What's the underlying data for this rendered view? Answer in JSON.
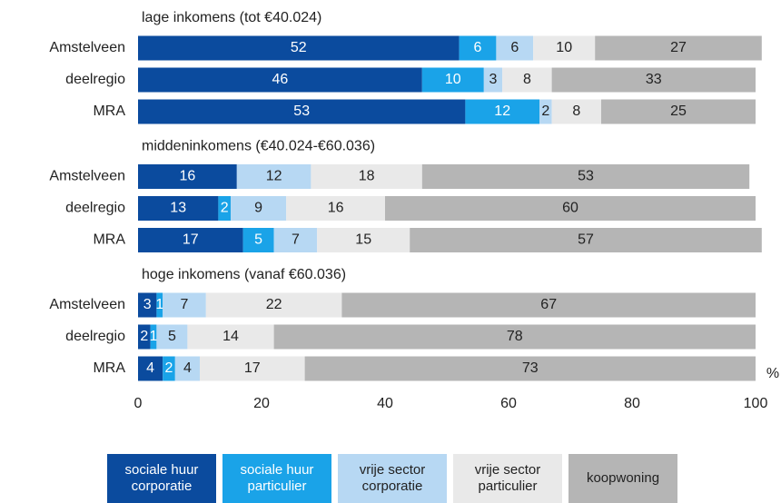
{
  "chart_data": {
    "type": "bar",
    "stacked": true,
    "series": [
      {
        "name": "sociale huur corporatie",
        "color": "#0b4b9e"
      },
      {
        "name": "sociale huur particulier",
        "color": "#1aa3e8"
      },
      {
        "name": "vrije sector corporatie",
        "color": "#b7d8f3"
      },
      {
        "name": "vrije sector particulier",
        "color": "#e9e9e9"
      },
      {
        "name": "koopwoning",
        "color": "#b5b5b5"
      }
    ],
    "groups": [
      {
        "title": "lage inkomens (tot €40.024)",
        "categories": [
          "Amstelveen",
          "deelregio",
          "MRA"
        ],
        "values": [
          [
            52,
            46,
            53
          ],
          [
            6,
            10,
            12
          ],
          [
            6,
            3,
            2
          ],
          [
            10,
            8,
            8
          ],
          [
            27,
            33,
            25
          ]
        ]
      },
      {
        "title": "middeninkomens (€40.024-€60.036)",
        "categories": [
          "Amstelveen",
          "deelregio",
          "MRA"
        ],
        "values": [
          [
            16,
            13,
            17
          ],
          [
            0,
            2,
            5
          ],
          [
            12,
            9,
            7
          ],
          [
            18,
            16,
            15
          ],
          [
            53,
            60,
            57
          ]
        ]
      },
      {
        "title": "hoge inkomens (vanaf €60.036)",
        "categories": [
          "Amstelveen",
          "deelregio",
          "MRA"
        ],
        "values": [
          [
            3,
            2,
            4
          ],
          [
            1,
            1,
            2
          ],
          [
            7,
            5,
            4
          ],
          [
            22,
            14,
            17
          ],
          [
            67,
            78,
            73
          ]
        ]
      }
    ],
    "xlabel": "%",
    "xlim": [
      0,
      100
    ],
    "xticks": [
      0,
      20,
      40,
      60,
      80,
      100
    ]
  }
}
